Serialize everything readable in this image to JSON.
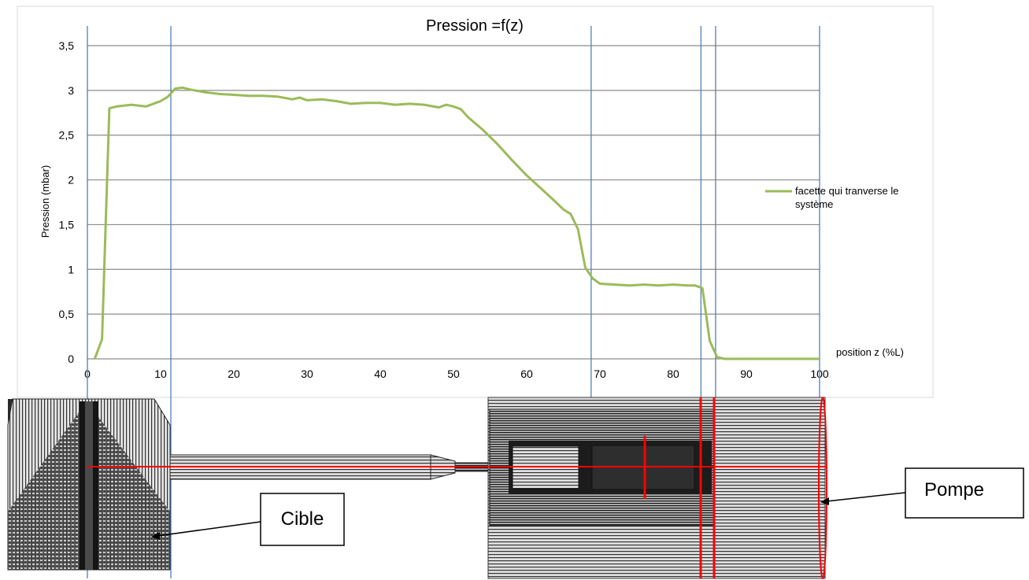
{
  "chart_data": {
    "type": "line",
    "title": "Pression =f(z)",
    "xlabel": "position z (%L)",
    "ylabel": "Pression (mbar)",
    "xlim": [
      0,
      100
    ],
    "ylim": [
      0,
      3.5
    ],
    "x_ticks": [
      "0",
      "10",
      "20",
      "30",
      "40",
      "50",
      "60",
      "70",
      "80",
      "90",
      "100"
    ],
    "y_ticks": [
      "0",
      "0,5",
      "1",
      "1,5",
      "2",
      "2,5",
      "3",
      "3,5"
    ],
    "grid": "horizontal",
    "legend_position": "right",
    "series": [
      {
        "name": "facette qui tranverse le système",
        "color": "#9bbb59",
        "x": [
          1,
          2,
          3,
          4,
          6,
          8,
          10,
          11,
          12,
          13,
          14,
          16,
          18,
          20,
          22,
          24,
          26,
          28,
          29,
          30,
          32,
          34,
          36,
          38,
          40,
          42,
          44,
          46,
          48,
          49,
          50,
          51,
          52,
          54,
          56,
          58,
          60,
          62,
          64,
          65,
          66,
          67,
          68,
          69,
          70,
          72,
          74,
          76,
          78,
          80,
          82,
          83,
          84,
          85,
          86,
          87,
          90,
          95,
          100
        ],
        "y": [
          0,
          0.22,
          2.8,
          2.82,
          2.84,
          2.82,
          2.88,
          2.93,
          3.02,
          3.03,
          3.01,
          2.98,
          2.96,
          2.95,
          2.94,
          2.94,
          2.93,
          2.9,
          2.92,
          2.89,
          2.9,
          2.88,
          2.85,
          2.86,
          2.86,
          2.84,
          2.85,
          2.84,
          2.81,
          2.84,
          2.82,
          2.79,
          2.7,
          2.56,
          2.4,
          2.22,
          2.05,
          1.9,
          1.75,
          1.67,
          1.62,
          1.45,
          1.02,
          0.9,
          0.84,
          0.83,
          0.82,
          0.83,
          0.82,
          0.83,
          0.82,
          0.82,
          0.79,
          0.2,
          0.02,
          0,
          0,
          0,
          0
        ]
      }
    ],
    "markers_x": [
      0,
      11.4,
      68.8,
      83.8,
      85.8,
      100
    ]
  },
  "callouts": {
    "target": "Cible",
    "pump": "Pompe"
  }
}
